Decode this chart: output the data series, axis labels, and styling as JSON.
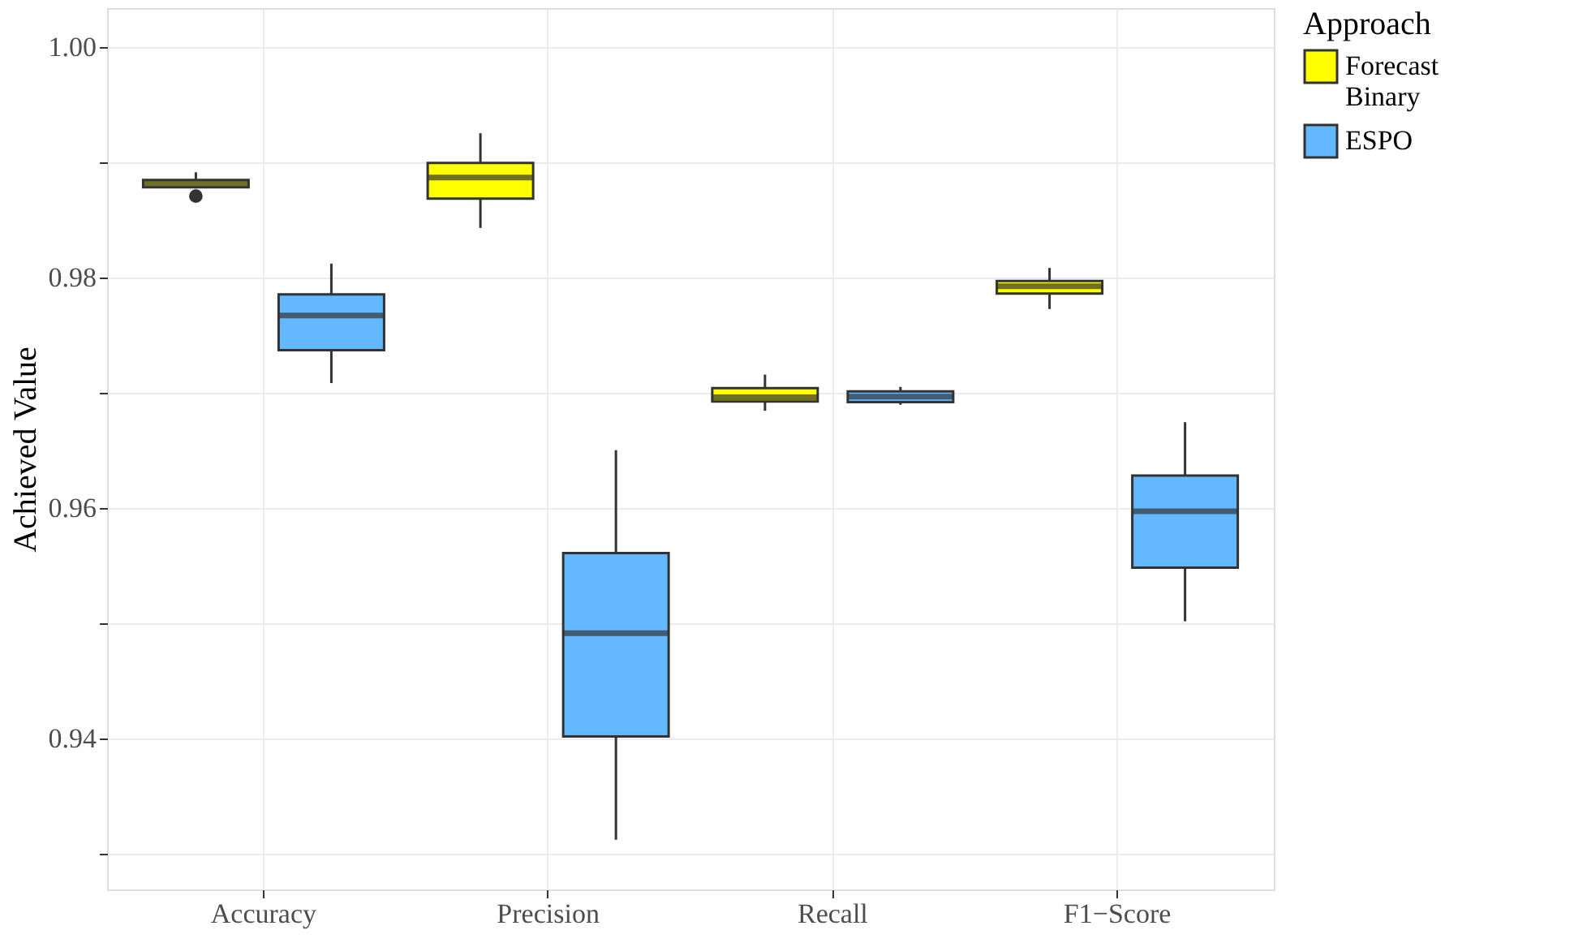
{
  "chart_data": {
    "type": "box",
    "ylabel": "Achieved Value",
    "legend_title": "Approach",
    "legend": "right",
    "grid": true,
    "categories": [
      "Accuracy",
      "Precision",
      "Recall",
      "F1−Score"
    ],
    "ylim": [
      0.9269,
      1.0034
    ],
    "yticks": [
      {
        "value": 0.93,
        "label": null
      },
      0.94,
      {
        "value": 0.95,
        "label": null
      },
      0.96,
      {
        "value": 0.97,
        "label": null
      },
      0.98,
      {
        "value": 0.99,
        "label": null
      },
      {
        "value": 1.0,
        "label": "1.00"
      }
    ],
    "series": [
      {
        "name": "Forecast Binary",
        "color": "#ffff00",
        "boxes": [
          {
            "low": 0.98775,
            "q1": 0.98785,
            "median": 0.98817,
            "q3": 0.98849,
            "high": 0.98915,
            "outliers": [
              0.98708
            ]
          },
          {
            "low": 0.98432,
            "q1": 0.98686,
            "median": 0.98869,
            "q3": 0.98996,
            "high": 0.99254
          },
          {
            "low": 0.96845,
            "q1": 0.96925,
            "median": 0.96962,
            "q3": 0.97042,
            "high": 0.97159
          },
          {
            "low": 0.97728,
            "q1": 0.97863,
            "median": 0.97925,
            "q3": 0.97972,
            "high": 0.98085
          }
        ]
      },
      {
        "name": "ESPO",
        "color": "#63b8ff",
        "boxes": [
          {
            "low": 0.97085,
            "q1": 0.9737,
            "median": 0.97672,
            "q3": 0.97855,
            "high": 0.98122
          },
          {
            "low": 0.93122,
            "q1": 0.94018,
            "median": 0.94915,
            "q3": 0.9561,
            "high": 0.96503
          },
          {
            "low": 0.96897,
            "q1": 0.9692,
            "median": 0.96967,
            "q3": 0.97014,
            "high": 0.97052
          },
          {
            "low": 0.95018,
            "q1": 0.95483,
            "median": 0.95972,
            "q3": 0.96282,
            "high": 0.96746
          }
        ]
      }
    ]
  }
}
